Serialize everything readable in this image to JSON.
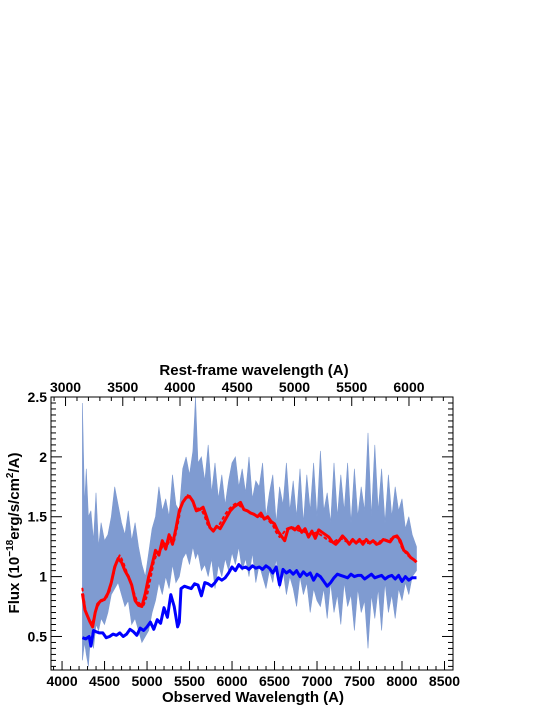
{
  "chart_data": {
    "type": "line",
    "title": "",
    "xlabel": "Observed Wavelength (A)",
    "ylabel": "Flux (10^-18 erg/s/cm^2/A)",
    "ylabel_parts": {
      "prefix": "Flux (10",
      "exp1": "−18",
      "mid": "erg/s/cm",
      "exp2": "2",
      "suffix": "/A)"
    },
    "top_xlabel": "Rest-frame wavelength (A)",
    "xlim": [
      3870,
      8600
    ],
    "ylim": [
      0.22,
      2.5
    ],
    "x_ticks": [
      4000,
      4500,
      5000,
      5500,
      6000,
      6500,
      7000,
      7500,
      8000,
      8500
    ],
    "x_tick_labels": [
      "4000",
      "4500",
      "5000",
      "5500",
      "6000",
      "6500",
      "7000",
      "7500",
      "8000",
      "8500"
    ],
    "y_ticks": [
      0.5,
      1,
      1.5,
      2,
      2.5
    ],
    "y_tick_labels": [
      "0.5",
      "1",
      "1.5",
      "2",
      "2.5"
    ],
    "top_ticks": [
      3000,
      3500,
      4000,
      4500,
      5000,
      5500,
      6000
    ],
    "top_tick_labels": [
      "3000",
      "3500",
      "4000",
      "4500",
      "5000",
      "5500",
      "6000"
    ],
    "top_axis_scale": 1.347,
    "grid": false,
    "series": [
      {
        "color": "#7f9bd1",
        "style": "band",
        "x": [
          4240,
          4265,
          4285,
          4310,
          4340,
          4370,
          4400,
          4430,
          4460,
          4500,
          4540,
          4580,
          4620,
          4660,
          4700,
          4740,
          4780,
          4820,
          4860,
          4900,
          4940,
          4980,
          5020,
          5060,
          5100,
          5140,
          5180,
          5220,
          5260,
          5300,
          5340,
          5380,
          5420,
          5460,
          5500,
          5540,
          5570,
          5600,
          5640,
          5680,
          5720,
          5760,
          5800,
          5840,
          5880,
          5920,
          5960,
          6000,
          6040,
          6080,
          6120,
          6160,
          6200,
          6240,
          6280,
          6320,
          6360,
          6400,
          6440,
          6480,
          6520,
          6560,
          6600,
          6640,
          6680,
          6720,
          6760,
          6800,
          6840,
          6880,
          6920,
          6960,
          7000,
          7040,
          7080,
          7120,
          7160,
          7200,
          7240,
          7280,
          7320,
          7360,
          7400,
          7440,
          7480,
          7520,
          7560,
          7600,
          7640,
          7680,
          7720,
          7760,
          7800,
          7840,
          7880,
          7920,
          7960,
          8000,
          8040,
          8080,
          8120,
          8170
        ],
        "upper": [
          2.45,
          1.6,
          1.9,
          1.5,
          1.55,
          1.3,
          1.7,
          1.25,
          1.45,
          1.3,
          1.35,
          1.5,
          1.75,
          1.6,
          1.45,
          1.35,
          1.55,
          1.3,
          1.45,
          1.25,
          1.1,
          1.0,
          1.2,
          1.4,
          1.5,
          1.75,
          1.55,
          1.65,
          1.5,
          1.85,
          1.6,
          1.55,
          1.9,
          2.0,
          1.85,
          2.05,
          2.5,
          1.95,
          2.0,
          1.8,
          2.1,
          1.7,
          1.95,
          1.65,
          1.85,
          1.6,
          1.8,
          1.95,
          2.0,
          1.75,
          1.9,
          1.7,
          2.0,
          1.65,
          1.8,
          1.75,
          1.95,
          1.5,
          1.7,
          1.85,
          1.45,
          1.75,
          1.6,
          1.95,
          1.55,
          1.8,
          1.5,
          1.9,
          1.45,
          1.85,
          1.55,
          1.95,
          1.5,
          2.05,
          1.55,
          1.7,
          1.45,
          1.95,
          1.5,
          1.85,
          1.55,
          1.95,
          1.45,
          1.9,
          1.5,
          1.75,
          1.55,
          2.2,
          1.5,
          2.1,
          1.55,
          1.9,
          1.45,
          1.85,
          1.5,
          1.75,
          1.55,
          1.65,
          1.4,
          1.5,
          1.35,
          1.25
        ],
        "lower": [
          0.3,
          0.45,
          0.35,
          0.25,
          0.55,
          0.4,
          0.6,
          0.55,
          0.65,
          0.6,
          0.7,
          0.85,
          0.9,
          0.95,
          0.85,
          0.75,
          0.8,
          0.6,
          0.65,
          0.55,
          0.45,
          0.5,
          0.55,
          0.7,
          0.8,
          0.95,
          0.85,
          1.0,
          0.9,
          1.1,
          0.95,
          1.0,
          1.15,
          1.2,
          1.1,
          1.25,
          1.15,
          1.2,
          1.05,
          1.1,
          1.0,
          1.15,
          0.9,
          1.1,
          1.0,
          1.15,
          1.05,
          1.2,
          1.1,
          1.25,
          1.05,
          1.15,
          1.0,
          1.2,
          0.95,
          1.1,
          1.0,
          0.9,
          1.05,
          0.95,
          1.15,
          0.9,
          1.05,
          0.85,
          1.0,
          0.9,
          0.75,
          1.0,
          0.85,
          0.95,
          0.7,
          0.9,
          0.8,
          0.75,
          0.9,
          0.65,
          0.95,
          0.7,
          0.85,
          0.6,
          0.95,
          0.75,
          0.85,
          0.55,
          0.9,
          0.7,
          0.8,
          0.4,
          0.85,
          0.65,
          0.9,
          0.55,
          0.95,
          0.7,
          0.85,
          0.65,
          0.9,
          0.8,
          0.95,
          0.85,
          1.0,
          1.05
        ]
      },
      {
        "color": "#0000ff",
        "style": "solid",
        "x": [
          4240,
          4280,
          4320,
          4340,
          4370,
          4400,
          4440,
          4480,
          4520,
          4560,
          4600,
          4640,
          4680,
          4720,
          4760,
          4800,
          4840,
          4880,
          4920,
          4960,
          5000,
          5040,
          5080,
          5120,
          5160,
          5200,
          5240,
          5280,
          5320,
          5360,
          5380,
          5400,
          5440,
          5480,
          5520,
          5560,
          5600,
          5640,
          5680,
          5720,
          5760,
          5800,
          5840,
          5880,
          5920,
          5960,
          6000,
          6040,
          6080,
          6120,
          6160,
          6200,
          6240,
          6280,
          6320,
          6360,
          6400,
          6440,
          6480,
          6520,
          6560,
          6600,
          6640,
          6680,
          6720,
          6760,
          6800,
          6840,
          6880,
          6920,
          6960,
          7000,
          7040,
          7080,
          7120,
          7160,
          7200,
          7240,
          7280,
          7320,
          7360,
          7400,
          7440,
          7480,
          7520,
          7560,
          7600,
          7640,
          7680,
          7720,
          7760,
          7800,
          7840,
          7880,
          7920,
          7960,
          8000,
          8040,
          8080,
          8120,
          8170
        ],
        "y": [
          0.49,
          0.48,
          0.5,
          0.42,
          0.55,
          0.54,
          0.53,
          0.53,
          0.49,
          0.5,
          0.52,
          0.51,
          0.53,
          0.5,
          0.52,
          0.56,
          0.54,
          0.51,
          0.57,
          0.55,
          0.58,
          0.62,
          0.56,
          0.64,
          0.61,
          0.74,
          0.66,
          0.85,
          0.75,
          0.58,
          0.62,
          0.9,
          0.92,
          0.91,
          0.9,
          0.94,
          0.93,
          0.84,
          0.95,
          0.94,
          0.92,
          0.95,
          0.99,
          0.97,
          0.99,
          1.03,
          1.08,
          1.05,
          1.1,
          1.07,
          1.08,
          1.06,
          1.09,
          1.07,
          1.08,
          1.06,
          1.09,
          1.07,
          1.03,
          1.08,
          0.93,
          1.06,
          1.03,
          1.05,
          1.02,
          1.05,
          1.0,
          1.04,
          1.01,
          1.03,
          0.97,
          1.02,
          1.0,
          0.96,
          0.92,
          0.95,
          0.99,
          1.02,
          1.01,
          1.0,
          0.99,
          1.02,
          1.0,
          1.01,
          1.01,
          0.98,
          1.0,
          1.02,
          0.99,
          1.0,
          1.01,
          0.98,
          1.0,
          1.01,
          0.98,
          1.01,
          0.96,
          1.0,
          0.97,
          0.99,
          0.99
        ]
      },
      {
        "color": "#ff0000",
        "style": "solid",
        "x": [
          4240,
          4270,
          4300,
          4330,
          4360,
          4390,
          4420,
          4460,
          4500,
          4540,
          4580,
          4620,
          4660,
          4700,
          4740,
          4780,
          4820,
          4860,
          4900,
          4940,
          4980,
          5020,
          5060,
          5100,
          5140,
          5180,
          5220,
          5260,
          5300,
          5340,
          5380,
          5420,
          5460,
          5500,
          5540,
          5580,
          5620,
          5660,
          5700,
          5740,
          5780,
          5820,
          5860,
          5900,
          5940,
          5980,
          6020,
          6060,
          6100,
          6140,
          6180,
          6220,
          6260,
          6300,
          6340,
          6380,
          6420,
          6460,
          6500,
          6540,
          6580,
          6620,
          6660,
          6700,
          6740,
          6780,
          6820,
          6860,
          6900,
          6940,
          6980,
          7020,
          7060,
          7100,
          7140,
          7180,
          7220,
          7260,
          7300,
          7340,
          7380,
          7420,
          7460,
          7500,
          7540,
          7580,
          7620,
          7660,
          7700,
          7740,
          7780,
          7820,
          7860,
          7900,
          7940,
          7980,
          8020,
          8060,
          8100,
          8140,
          8170
        ],
        "y": [
          0.86,
          0.72,
          0.67,
          0.62,
          0.58,
          0.7,
          0.77,
          0.8,
          0.81,
          0.86,
          0.95,
          1.08,
          1.15,
          1.12,
          1.05,
          1.0,
          0.93,
          0.8,
          0.76,
          0.75,
          0.86,
          1.0,
          1.1,
          1.22,
          1.18,
          1.3,
          1.23,
          1.35,
          1.27,
          1.4,
          1.55,
          1.62,
          1.66,
          1.67,
          1.63,
          1.55,
          1.56,
          1.58,
          1.5,
          1.41,
          1.38,
          1.42,
          1.4,
          1.45,
          1.5,
          1.55,
          1.58,
          1.6,
          1.62,
          1.56,
          1.55,
          1.53,
          1.52,
          1.5,
          1.53,
          1.48,
          1.5,
          1.46,
          1.44,
          1.38,
          1.34,
          1.3,
          1.4,
          1.41,
          1.39,
          1.42,
          1.37,
          1.4,
          1.33,
          1.38,
          1.32,
          1.39,
          1.37,
          1.35,
          1.33,
          1.29,
          1.27,
          1.3,
          1.34,
          1.31,
          1.27,
          1.31,
          1.28,
          1.31,
          1.27,
          1.31,
          1.28,
          1.3,
          1.27,
          1.28,
          1.31,
          1.3,
          1.29,
          1.33,
          1.34,
          1.3,
          1.22,
          1.2,
          1.16,
          1.14,
          1.12
        ]
      },
      {
        "color": "#ff0000",
        "style": "dotted",
        "x": [
          4240,
          4280,
          4320,
          4360,
          4400,
          4440,
          4480,
          4520,
          4560,
          4600,
          4640,
          4680,
          4720,
          4760,
          4800,
          4840,
          4880,
          4920,
          4960,
          5000,
          5040,
          5080,
          5120,
          5160,
          5200,
          5240,
          5280,
          5320,
          5360,
          5400,
          5440,
          5480,
          5520,
          5560,
          5600,
          5640,
          5680,
          5720,
          5760,
          5800,
          5840,
          5880,
          5920,
          5960,
          6000,
          6040,
          6080,
          6120,
          6160,
          6200,
          6240,
          6280,
          6320,
          6360,
          6400,
          6440,
          6480,
          6520,
          6560,
          6600,
          6640,
          6680,
          6720,
          6760,
          6800,
          6840,
          6880,
          6920,
          6960,
          7000,
          7040,
          7080,
          7120,
          7160,
          7200,
          7240,
          7280,
          7320,
          7360,
          7400,
          7440,
          7480,
          7520,
          7560,
          7600,
          7640,
          7680,
          7720,
          7760,
          7800,
          7840,
          7880,
          7920,
          7960,
          8000,
          8040,
          8080,
          8120,
          8170
        ],
        "y": [
          0.9,
          0.7,
          0.64,
          0.62,
          0.72,
          0.78,
          0.8,
          0.82,
          0.88,
          1.0,
          1.12,
          1.18,
          1.12,
          1.04,
          0.98,
          0.88,
          0.8,
          0.77,
          0.76,
          0.84,
          0.98,
          1.12,
          1.2,
          1.22,
          1.28,
          1.26,
          1.33,
          1.3,
          1.43,
          1.58,
          1.64,
          1.68,
          1.65,
          1.58,
          1.57,
          1.56,
          1.5,
          1.42,
          1.4,
          1.4,
          1.42,
          1.47,
          1.52,
          1.56,
          1.59,
          1.61,
          1.6,
          1.57,
          1.55,
          1.54,
          1.52,
          1.51,
          1.51,
          1.49,
          1.49,
          1.46,
          1.43,
          1.37,
          1.33,
          1.36,
          1.4,
          1.4,
          1.41,
          1.39,
          1.38,
          1.38,
          1.36,
          1.35,
          1.36,
          1.37,
          1.35,
          1.33,
          1.31,
          1.29,
          1.29,
          1.31,
          1.32,
          1.3,
          1.29,
          1.3,
          1.29,
          1.29,
          1.29,
          1.3,
          1.28,
          1.29,
          1.29,
          1.29,
          1.3,
          1.31,
          1.3,
          1.32,
          1.34,
          1.31,
          1.24,
          1.2,
          1.17,
          1.15,
          1.13
        ]
      }
    ]
  }
}
